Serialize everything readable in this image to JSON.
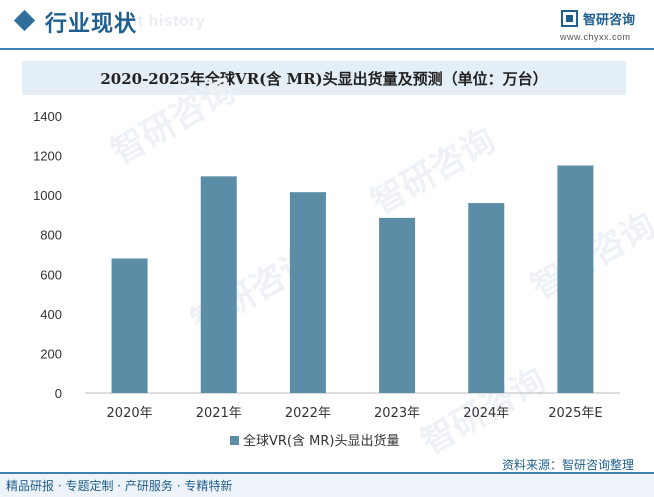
{
  "header": {
    "section_title": "行业现状",
    "ghost_text": "ent history",
    "brand_name": "智研咨询",
    "brand_url": "www.chyxx.com"
  },
  "footer": {
    "left_text": "精品研报 · 专题定制 · 产研服务 · 专精特新",
    "source_text": "资料来源：智研咨询整理"
  },
  "watermark_text": "智研咨询",
  "colors": {
    "bar": "#5b8ea6",
    "accent": "#1f5f8f",
    "band": "#e3eef7"
  },
  "chart_data": {
    "type": "bar",
    "title": "2020-2025年全球VR(含 MR)头显出货量及预测（单位：万台）",
    "categories": [
      "2020年",
      "2021年",
      "2022年",
      "2023年",
      "2024年",
      "2025年E"
    ],
    "series": [
      {
        "name": "全球VR(含 MR)头显出货量",
        "values": [
          680,
          1095,
          1015,
          885,
          960,
          1150
        ]
      }
    ],
    "ylim": [
      0,
      1400
    ],
    "yticks": [
      0,
      200,
      400,
      600,
      800,
      1000,
      1200,
      1400
    ],
    "grid": false,
    "legend": "bottom"
  }
}
